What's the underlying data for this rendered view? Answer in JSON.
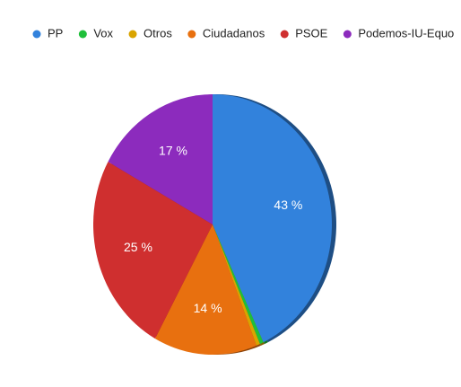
{
  "chart_data": {
    "type": "pie",
    "categories": [
      "PP",
      "Vox",
      "Otros",
      "Ciudadanos",
      "PSOE",
      "Podemos-IU-Equo"
    ],
    "values": [
      43,
      0.5,
      0.5,
      14,
      25,
      17
    ],
    "value_labels": [
      "43 %",
      null,
      null,
      "14 %",
      "25 %",
      "17 %"
    ],
    "colors": [
      "#3282dc",
      "#1fbf3a",
      "#d9a400",
      "#e8700f",
      "#cf2f2f",
      "#8c2bbd"
    ],
    "legend": "top"
  }
}
